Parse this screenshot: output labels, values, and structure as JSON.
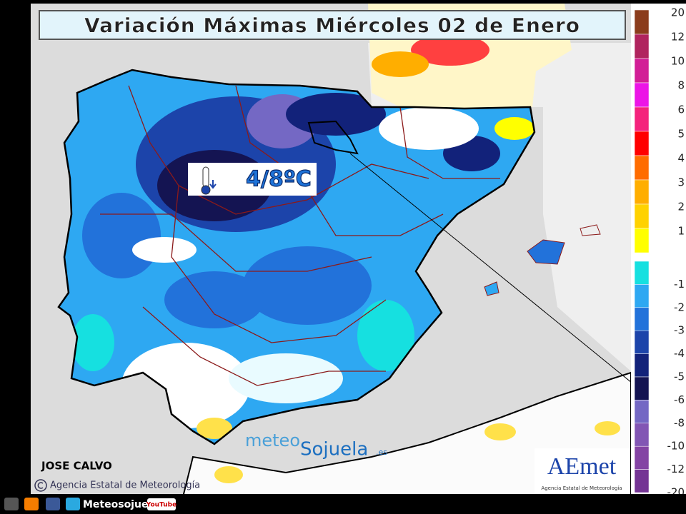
{
  "title": "Variación Máximas Miércoles 02 de Enero",
  "callout": "4/8ºC",
  "legend": {
    "positive": [
      {
        "label": "20",
        "color": "#8b3c1c"
      },
      {
        "label": "12",
        "color": "#b0245e"
      },
      {
        "label": "10",
        "color": "#d21e96"
      },
      {
        "label": "8",
        "color": "#ec14e6"
      },
      {
        "label": "6",
        "color": "#f4227c"
      },
      {
        "label": "5",
        "color": "#ff0000"
      },
      {
        "label": "4",
        "color": "#ff6c00"
      },
      {
        "label": "3",
        "color": "#ffae00"
      },
      {
        "label": "2",
        "color": "#ffd200"
      },
      {
        "label": "1",
        "color": "#ffff00"
      }
    ],
    "negative": [
      {
        "label": "-1",
        "color": "#16e0e0"
      },
      {
        "label": "-2",
        "color": "#2ea8f2"
      },
      {
        "label": "-3",
        "color": "#2272da"
      },
      {
        "label": "-4",
        "color": "#1c44aa"
      },
      {
        "label": "-5",
        "color": "#12227a"
      },
      {
        "label": "-6",
        "color": "#141452"
      },
      {
        "label": "-8",
        "color": "#7468c4"
      },
      {
        "label": "-10",
        "color": "#8256b4"
      },
      {
        "label": "-12",
        "color": "#8444a4"
      },
      {
        "label": "-20",
        "color": "#743494"
      }
    ]
  },
  "author": "JOSE CALVO",
  "credit": "Agencia Estatal de Meteorología",
  "watermark": {
    "meteo": "meteo",
    "sojuela": "Sojuela",
    "domain": ".es"
  },
  "logo": {
    "name": "AEmet",
    "subtitle": "Agencia Estatal de Meteorología"
  },
  "footer": {
    "site": "Meteosojuela",
    "youtube": "YouTube"
  }
}
